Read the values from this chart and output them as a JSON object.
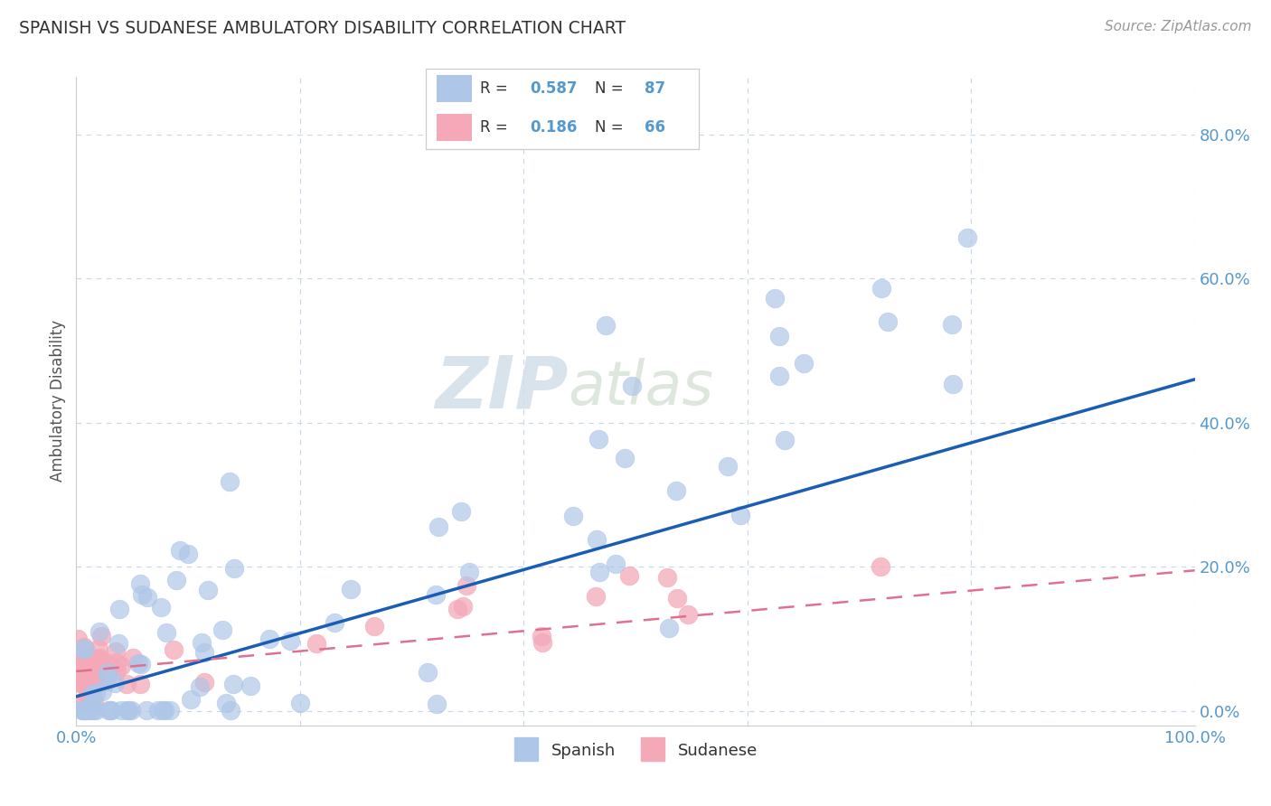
{
  "title": "SPANISH VS SUDANESE AMBULATORY DISABILITY CORRELATION CHART",
  "source_text": "Source: ZipAtlas.com",
  "ylabel": "Ambulatory Disability",
  "xlim": [
    0.0,
    1.0
  ],
  "ylim": [
    -0.02,
    0.88
  ],
  "x_ticks": [
    0.0,
    0.2,
    0.4,
    0.6,
    0.8,
    1.0
  ],
  "x_tick_labels": [
    "0.0%",
    "",
    "",
    "",
    "",
    "100.0%"
  ],
  "y_ticks": [
    0.0,
    0.2,
    0.4,
    0.6,
    0.8
  ],
  "y_tick_labels": [
    "0.0%",
    "20.0%",
    "40.0%",
    "60.0%",
    "80.0%"
  ],
  "spanish_color": "#aec6e8",
  "spanish_edge_color": "#aec6e8",
  "sudanese_color": "#f4a8b8",
  "sudanese_edge_color": "#f4a8b8",
  "spanish_line_color": "#1a5db5",
  "sudanese_line_color": "#e07090",
  "spanish_R": 0.587,
  "spanish_N": 87,
  "sudanese_R": 0.186,
  "sudanese_N": 66,
  "watermark_zip": "ZIP",
  "watermark_atlas": "atlas",
  "background_color": "#ffffff",
  "grid_color": "#c8d8e8",
  "title_color": "#333333",
  "source_color": "#999999",
  "tick_color": "#5599cc",
  "ylabel_color": "#555555"
}
